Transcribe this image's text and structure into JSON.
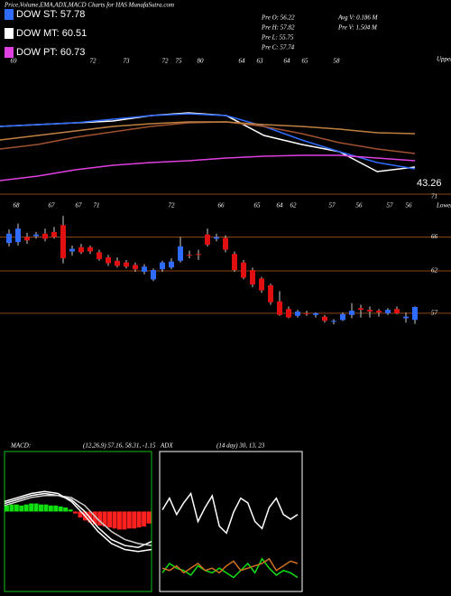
{
  "header": {
    "title": "Price,Volume,EMA,ADX,MACD Charts for HAS MunafaSutra.com",
    "legend": [
      {
        "label": "DOW ST: 57.78",
        "color": "#2f6bff"
      },
      {
        "label": "DOW MT: 60.51",
        "color": "#ffffff"
      },
      {
        "label": "DOW PT: 60.73",
        "color": "#e040e0"
      }
    ],
    "stats": [
      "Pre O: 56.22",
      "Pre H: 57.82",
      "Pre L: 55.75",
      "Pre C: 57.74"
    ],
    "volume": [
      "Avg V: 0.186 M",
      "Pre V: 1.504 M"
    ]
  },
  "chart_data": [
    {
      "type": "line",
      "ylim": [
        40,
        100
      ],
      "upper": "Upper",
      "last_label": "43.26",
      "next_label": "71",
      "top_labels": [
        "69",
        "72",
        "73",
        "72",
        "75",
        "80",
        "64",
        "63",
        "64",
        "65",
        "58"
      ],
      "series": [
        {
          "color": "#ffffff",
          "values": [
            70,
            70.8,
            71.6,
            72.4,
            74.8,
            76,
            74.8,
            66,
            62,
            58.8,
            50,
            52
          ]
        },
        {
          "color": "#2f6bff",
          "values": [
            70,
            70.8,
            71.6,
            73.2,
            74.8,
            75.6,
            74.8,
            70,
            64,
            58.8,
            54,
            51.2
          ]
        },
        {
          "color": "#a0522d",
          "values": [
            60,
            62,
            65.2,
            67.6,
            70,
            71.6,
            72,
            70,
            66.8,
            62.8,
            60,
            58
          ]
        },
        {
          "color": "#c08040",
          "values": [
            64,
            66,
            68,
            70,
            71.2,
            72,
            72,
            70.8,
            70,
            68.8,
            67.2,
            66.8
          ]
        },
        {
          "color": "#e040e0",
          "values": [
            46,
            48,
            50.8,
            52.8,
            54,
            54.8,
            56,
            56.8,
            57.2,
            57.2,
            56,
            54.8
          ]
        }
      ]
    },
    {
      "type": "candlestick",
      "ylim": [
        54,
        70
      ],
      "yticks": [
        66,
        62,
        57
      ],
      "grid": true,
      "lower": "Lower",
      "up_color": "#2f6bff",
      "down_color": "#e01010",
      "grid_color": "#8b4513",
      "price_labels": [
        "68",
        "67",
        "67",
        "71",
        "72",
        "66",
        "65",
        "64",
        "62",
        "57",
        "56",
        "57",
        "56"
      ],
      "open": [
        65.3,
        65.4,
        66.0,
        66.1,
        66.4,
        66.6,
        67.4,
        64.3,
        64.8,
        64.8,
        64.2,
        63.6,
        63.2,
        63.0,
        62.7,
        61.9,
        61.0,
        62.2,
        62.4,
        63.2,
        63.9,
        64.0,
        66.3,
        65.8,
        65.9,
        64.0,
        63.0,
        62.1,
        61.1,
        60.3,
        58.4,
        57.5,
        56.7,
        57.0,
        56.8,
        56.6,
        56.0,
        56.2,
        56.8,
        57.6,
        57.4,
        57.3,
        57.0,
        57.5,
        56.4,
        56.22
      ],
      "high": [
        66.9,
        67.6,
        66.5,
        66.6,
        67.0,
        67.2,
        68.5,
        65.0,
        65.2,
        65.0,
        64.5,
        63.9,
        63.6,
        63.3,
        63.0,
        62.8,
        62.3,
        63.2,
        63.5,
        66.0,
        64.4,
        64.5,
        67.0,
        66.4,
        66.2,
        64.3,
        63.3,
        62.4,
        61.3,
        60.5,
        59.6,
        57.8,
        57.4,
        57.3,
        57.1,
        56.8,
        56.3,
        57.1,
        58.2,
        58.0,
        57.8,
        57.5,
        57.6,
        57.8,
        57.1,
        57.82
      ],
      "low": [
        64.9,
        65.0,
        65.2,
        65.8,
        65.5,
        65.8,
        62.9,
        63.8,
        64.0,
        64.0,
        63.2,
        62.6,
        62.4,
        62.3,
        61.9,
        61.6,
        60.8,
        61.9,
        62.2,
        63.0,
        63.5,
        63.3,
        64.9,
        65.5,
        64.2,
        61.9,
        61.0,
        60.1,
        59.4,
        58.0,
        56.7,
        56.4,
        56.5,
        56.7,
        56.5,
        55.9,
        55.7,
        56.1,
        56.4,
        56.5,
        56.5,
        56.6,
        56.8,
        56.9,
        55.9,
        55.75
      ],
      "close": [
        66.4,
        67.0,
        65.6,
        66.3,
        65.8,
        66.0,
        63.5,
        64.6,
        64.2,
        64.3,
        63.4,
        62.9,
        62.6,
        62.5,
        62.2,
        62.5,
        62.1,
        63.0,
        63.1,
        64.9,
        63.8,
        63.9,
        65.1,
        66.0,
        64.5,
        62.1,
        61.2,
        60.4,
        59.7,
        58.3,
        56.8,
        56.5,
        57.2,
        56.9,
        57.0,
        56.1,
        56.1,
        56.9,
        57.3,
        57.4,
        57.2,
        57.1,
        57.4,
        57.0,
        56.6,
        57.74
      ]
    },
    {
      "type": "macd",
      "label": "MACD:",
      "params": "(12,26,9) 57.16, 58.31, -1.15",
      "ylim": [
        -4,
        3
      ],
      "pos_color": "#10e010",
      "neg_color": "#ff2020",
      "border_color": "#10c010",
      "histogram": [
        0.3,
        0.35,
        0.35,
        0.3,
        0.35,
        0.4,
        0.4,
        0.35,
        0.35,
        0.3,
        0.3,
        0.25,
        0.2,
        0.1,
        -0.1,
        -0.3,
        -0.45,
        -0.55,
        -0.65,
        -0.7,
        -0.75,
        -0.8,
        -0.85,
        -0.9,
        -0.9,
        -0.85,
        -0.85,
        -0.8,
        -0.75,
        -0.6
      ],
      "series": [
        {
          "color": "#ffffff",
          "values": [
            0.4,
            0.6,
            0.8,
            0.9,
            0.8,
            0.6,
            0.0,
            -0.8,
            -1.4,
            -1.7,
            -1.8,
            -1.5
          ]
        },
        {
          "color": "#d0d0d0",
          "values": [
            0.3,
            0.5,
            0.7,
            0.8,
            0.8,
            0.7,
            0.3,
            -0.4,
            -1.0,
            -1.4,
            -1.6,
            -1.7
          ]
        },
        {
          "color": "#ffffff",
          "values": [
            0.5,
            0.7,
            0.9,
            1.0,
            0.9,
            0.5,
            -0.2,
            -1.0,
            -1.6,
            -1.9,
            -2.0,
            -1.9
          ]
        }
      ]
    },
    {
      "type": "adx",
      "label": "ADX",
      "params": "(14 day) 30, 13, 23",
      "ylim": [
        0,
        60
      ],
      "border_color": "#ffffff",
      "series": [
        {
          "color": "#ffffff",
          "values": [
            35,
            40,
            33,
            38,
            42,
            30,
            36,
            41,
            28,
            25,
            34,
            40,
            38,
            30,
            27,
            36,
            40,
            33,
            31,
            33
          ]
        },
        {
          "color": "#10e010",
          "values": [
            8,
            12,
            10,
            9,
            7,
            11,
            9,
            8,
            10,
            8,
            6,
            9,
            12,
            8,
            14,
            10,
            7,
            9,
            8,
            6
          ]
        },
        {
          "color": "#d07020",
          "values": [
            10,
            9,
            11,
            8,
            10,
            12,
            9,
            10,
            8,
            11,
            13,
            9,
            10,
            11,
            12,
            14,
            9,
            11,
            13,
            12
          ]
        }
      ]
    }
  ]
}
